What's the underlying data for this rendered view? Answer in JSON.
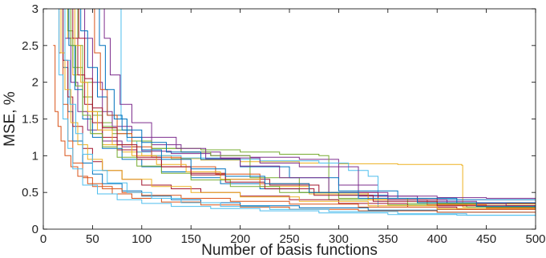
{
  "chart_data": {
    "type": "line",
    "title": "",
    "xlabel": "Number of basis functions",
    "ylabel": "MSE, %",
    "xlim": [
      0,
      500
    ],
    "ylim": [
      0,
      3
    ],
    "xticks": [
      0,
      50,
      100,
      150,
      200,
      250,
      300,
      350,
      400,
      450,
      500
    ],
    "yticks": [
      0,
      0.5,
      1,
      1.5,
      2,
      2.5,
      3
    ],
    "xtick_labels": [
      "0",
      "50",
      "100",
      "150",
      "200",
      "250",
      "300",
      "350",
      "400",
      "450",
      "500"
    ],
    "ytick_labels": [
      "0",
      "0.5",
      "1",
      "1.5",
      "2",
      "2.5",
      "3"
    ],
    "grid": false,
    "legend": "none",
    "series": [
      {
        "color": "#0072BD",
        "x": [
          15,
          20,
          25,
          30,
          40,
          50,
          60,
          80,
          100,
          130,
          160,
          200,
          260,
          330,
          400,
          500
        ],
        "y": [
          3.2,
          2.2,
          1.6,
          1.2,
          0.9,
          0.75,
          0.62,
          0.52,
          0.45,
          0.4,
          0.36,
          0.32,
          0.29,
          0.26,
          0.23,
          0.21
        ]
      },
      {
        "color": "#D95319",
        "x": [
          12,
          16,
          20,
          25,
          30,
          40,
          50,
          70,
          90,
          120,
          160,
          200,
          250,
          320,
          400,
          500
        ],
        "y": [
          3.2,
          2.4,
          1.7,
          1.2,
          0.9,
          0.7,
          0.58,
          0.48,
          0.42,
          0.37,
          0.33,
          0.3,
          0.27,
          0.25,
          0.23,
          0.2
        ]
      },
      {
        "color": "#EDB120",
        "x": [
          20,
          25,
          30,
          40,
          50,
          60,
          80,
          100,
          130,
          160,
          200,
          260,
          300,
          360,
          425,
          426,
          500
        ],
        "y": [
          3.2,
          2.6,
          2.1,
          1.6,
          1.3,
          1.15,
          1.05,
          1.0,
          0.96,
          0.94,
          0.92,
          0.9,
          0.89,
          0.88,
          0.87,
          0.3,
          0.28
        ]
      },
      {
        "color": "#7E2F8E",
        "x": [
          18,
          22,
          28,
          35,
          45,
          60,
          80,
          100,
          130,
          170,
          210,
          260,
          300,
          340,
          400,
          450,
          500
        ],
        "y": [
          3.2,
          2.6,
          2.0,
          1.6,
          1.35,
          1.2,
          1.12,
          1.06,
          1.03,
          1.0,
          0.98,
          0.95,
          0.6,
          0.45,
          0.43,
          0.42,
          0.42
        ]
      },
      {
        "color": "#77AC30",
        "x": [
          20,
          25,
          30,
          40,
          50,
          60,
          70,
          90,
          110,
          140,
          160,
          200,
          240,
          280,
          290,
          350,
          430,
          500
        ],
        "y": [
          3.2,
          2.7,
          2.2,
          1.8,
          1.55,
          1.45,
          1.35,
          1.2,
          1.1,
          1.1,
          1.08,
          1.05,
          1.02,
          1.0,
          0.4,
          0.33,
          0.3,
          0.3
        ]
      },
      {
        "color": "#4DBEEE",
        "x": [
          78,
          79,
          85,
          95,
          110,
          140,
          180,
          220,
          280,
          300,
          310,
          330,
          340,
          400,
          500
        ],
        "y": [
          3.2,
          1.5,
          1.2,
          1.05,
          1.0,
          0.97,
          0.95,
          0.93,
          0.9,
          0.9,
          0.8,
          0.72,
          0.3,
          0.27,
          0.25
        ]
      },
      {
        "color": "#A2142F",
        "x": [
          16,
          20,
          25,
          30,
          40,
          50,
          60,
          80,
          100,
          130,
          160,
          200,
          250,
          300,
          370,
          420,
          500
        ],
        "y": [
          3.2,
          2.3,
          1.8,
          1.4,
          1.1,
          0.92,
          0.8,
          0.68,
          0.6,
          0.55,
          0.5,
          0.45,
          0.4,
          0.35,
          0.3,
          0.27,
          0.25
        ]
      },
      {
        "color": "#0072BD",
        "x": [
          22,
          26,
          32,
          40,
          50,
          60,
          80,
          100,
          120,
          150,
          180,
          220,
          260,
          300,
          350,
          400,
          500
        ],
        "y": [
          3.2,
          2.5,
          1.9,
          1.5,
          1.25,
          1.1,
          0.95,
          0.85,
          0.78,
          0.7,
          0.62,
          0.55,
          0.5,
          0.46,
          0.42,
          0.4,
          0.38
        ]
      },
      {
        "color": "#D95319",
        "x": [
          10,
          12,
          15,
          18,
          22,
          28,
          35,
          45,
          60,
          80,
          100,
          140,
          190,
          250,
          320,
          400,
          500
        ],
        "y": [
          2.5,
          1.6,
          1.4,
          1.2,
          1.0,
          0.85,
          0.72,
          0.62,
          0.55,
          0.5,
          0.46,
          0.42,
          0.38,
          0.34,
          0.3,
          0.27,
          0.24
        ]
      },
      {
        "color": "#EDB120",
        "x": [
          14,
          18,
          22,
          28,
          35,
          45,
          60,
          80,
          110,
          150,
          200,
          260,
          330,
          400,
          500
        ],
        "y": [
          3.2,
          2.4,
          1.9,
          1.45,
          1.15,
          0.95,
          0.8,
          0.68,
          0.58,
          0.5,
          0.44,
          0.38,
          0.32,
          0.28,
          0.25
        ]
      },
      {
        "color": "#7E2F8E",
        "x": [
          40,
          42,
          50,
          60,
          70,
          90,
          110,
          140,
          180,
          220,
          260,
          320,
          380,
          440,
          500
        ],
        "y": [
          3.2,
          2.6,
          2.0,
          1.6,
          1.4,
          1.25,
          1.15,
          1.05,
          0.97,
          0.9,
          0.85,
          0.45,
          0.38,
          0.35,
          0.33
        ]
      },
      {
        "color": "#77AC30",
        "x": [
          30,
          35,
          40,
          50,
          60,
          70,
          90,
          110,
          140,
          170,
          210,
          260,
          320,
          400,
          500
        ],
        "y": [
          3.2,
          2.5,
          2.0,
          1.6,
          1.4,
          1.3,
          1.2,
          1.1,
          1.05,
          1.0,
          0.7,
          0.5,
          0.42,
          0.36,
          0.32
        ]
      },
      {
        "color": "#4DBEEE",
        "x": [
          12,
          16,
          20,
          25,
          30,
          40,
          55,
          75,
          100,
          130,
          170,
          220,
          280,
          350,
          420,
          500
        ],
        "y": [
          3.2,
          2.1,
          1.5,
          1.1,
          0.82,
          0.6,
          0.48,
          0.4,
          0.35,
          0.31,
          0.28,
          0.25,
          0.22,
          0.2,
          0.19,
          0.18
        ]
      },
      {
        "color": "#A2142F",
        "x": [
          26,
          30,
          35,
          42,
          50,
          60,
          75,
          95,
          120,
          150,
          185,
          230,
          280,
          340,
          400,
          500
        ],
        "y": [
          3.2,
          2.6,
          2.1,
          1.7,
          1.45,
          1.25,
          1.08,
          0.95,
          0.85,
          0.76,
          0.68,
          0.6,
          0.5,
          0.42,
          0.35,
          0.32
        ]
      },
      {
        "color": "#0072BD",
        "x": [
          35,
          38,
          45,
          55,
          65,
          80,
          100,
          125,
          160,
          200,
          250,
          300,
          360,
          420,
          500
        ],
        "y": [
          3.2,
          2.7,
          2.2,
          1.8,
          1.55,
          1.35,
          1.18,
          1.05,
          0.95,
          0.85,
          0.7,
          0.52,
          0.42,
          0.36,
          0.33
        ]
      },
      {
        "color": "#D95319",
        "x": [
          50,
          52,
          58,
          65,
          75,
          90,
          110,
          140,
          175,
          220,
          270,
          330,
          390,
          450,
          500
        ],
        "y": [
          3.2,
          2.4,
          1.9,
          1.55,
          1.3,
          1.12,
          0.98,
          0.85,
          0.75,
          0.62,
          0.5,
          0.4,
          0.33,
          0.29,
          0.27
        ]
      },
      {
        "color": "#EDB120",
        "x": [
          28,
          32,
          38,
          45,
          55,
          70,
          90,
          115,
          145,
          180,
          220,
          270,
          330,
          400,
          500
        ],
        "y": [
          3.2,
          2.5,
          2.0,
          1.6,
          1.35,
          1.15,
          1.0,
          0.88,
          0.78,
          0.68,
          0.58,
          0.48,
          0.4,
          0.34,
          0.3
        ]
      },
      {
        "color": "#7E2F8E",
        "x": [
          60,
          62,
          68,
          78,
          90,
          110,
          135,
          165,
          200,
          240,
          290,
          350,
          410,
          470,
          500
        ],
        "y": [
          3.2,
          2.6,
          2.1,
          1.7,
          1.45,
          1.25,
          1.1,
          0.96,
          0.86,
          0.7,
          0.5,
          0.4,
          0.35,
          0.32,
          0.3
        ]
      },
      {
        "color": "#77AC30",
        "x": [
          24,
          28,
          33,
          40,
          48,
          60,
          75,
          95,
          120,
          150,
          190,
          240,
          300,
          370,
          440,
          500
        ],
        "y": [
          3.2,
          2.5,
          1.95,
          1.55,
          1.3,
          1.12,
          0.98,
          0.86,
          0.76,
          0.67,
          0.58,
          0.5,
          0.42,
          0.35,
          0.3,
          0.28
        ]
      },
      {
        "color": "#4DBEEE",
        "x": [
          18,
          22,
          27,
          33,
          40,
          50,
          65,
          85,
          110,
          140,
          180,
          230,
          290,
          360,
          430,
          500
        ],
        "y": [
          3.2,
          2.3,
          1.7,
          1.3,
          1.02,
          0.8,
          0.63,
          0.5,
          0.42,
          0.36,
          0.31,
          0.27,
          0.24,
          0.21,
          0.19,
          0.17
        ]
      },
      {
        "color": "#A2142F",
        "x": [
          32,
          36,
          42,
          50,
          60,
          75,
          95,
          120,
          150,
          185,
          225,
          275,
          335,
          400,
          500
        ],
        "y": [
          3.2,
          2.6,
          2.05,
          1.65,
          1.38,
          1.15,
          0.98,
          0.85,
          0.74,
          0.64,
          0.55,
          0.46,
          0.38,
          0.32,
          0.29
        ]
      },
      {
        "color": "#0072BD",
        "x": [
          55,
          57,
          63,
          72,
          85,
          100,
          120,
          150,
          185,
          225,
          270,
          320,
          380,
          440,
          500
        ],
        "y": [
          3.2,
          2.5,
          1.9,
          1.5,
          1.25,
          1.08,
          0.95,
          0.82,
          0.72,
          0.62,
          0.5,
          0.42,
          0.36,
          0.31,
          0.28
        ]
      }
    ]
  }
}
